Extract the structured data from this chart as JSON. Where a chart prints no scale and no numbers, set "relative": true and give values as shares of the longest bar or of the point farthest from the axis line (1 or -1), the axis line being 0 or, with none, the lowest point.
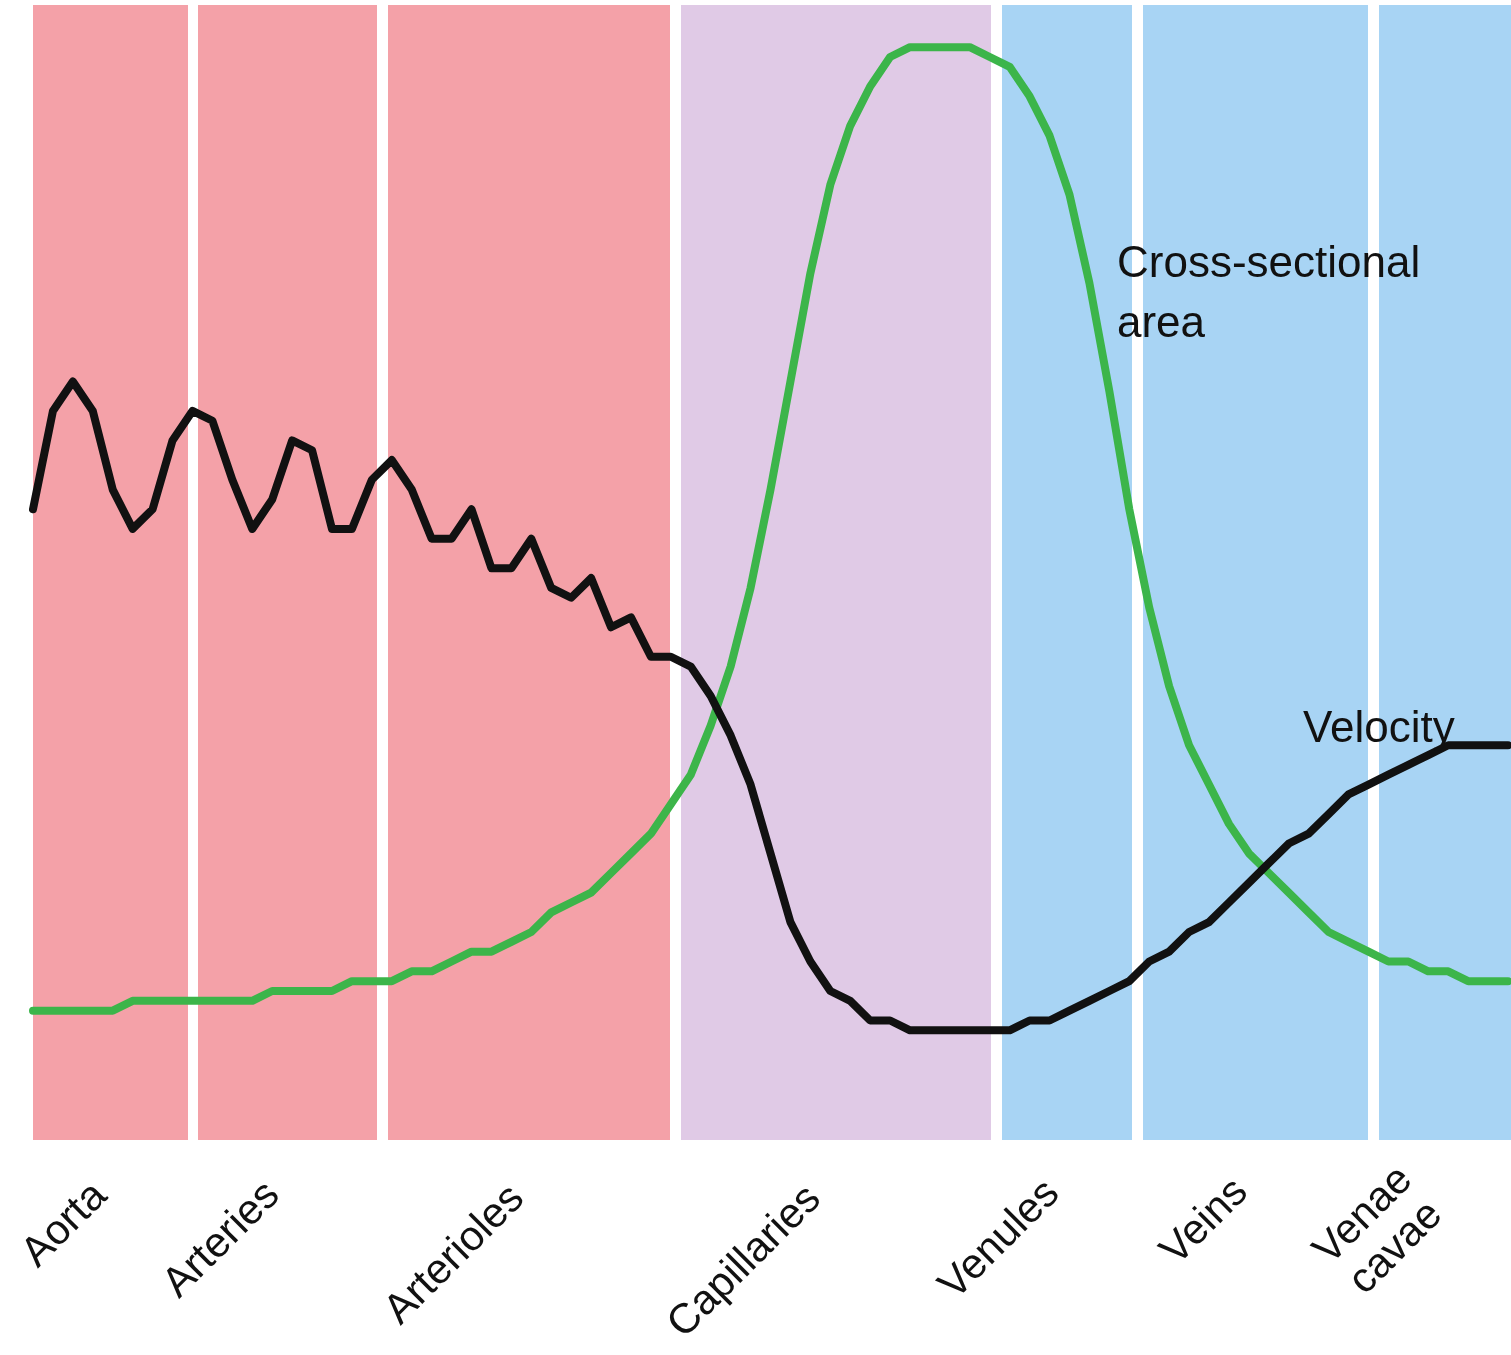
{
  "chart_data": {
    "type": "line",
    "relative": true,
    "grid": false,
    "legend": false,
    "marker": "none",
    "line_style": "solid",
    "categories": [
      null,
      null,
      null,
      null,
      null,
      null,
      null,
      null,
      null,
      null,
      null,
      null,
      null,
      null,
      null,
      null,
      null,
      null,
      null,
      null,
      null,
      null,
      null,
      null,
      null,
      null,
      null,
      null,
      null,
      null,
      null,
      null,
      null,
      null,
      null,
      null,
      null,
      null,
      null,
      null,
      null,
      null,
      null,
      null,
      null,
      null,
      null,
      null,
      null,
      null,
      null,
      null,
      null,
      null,
      null,
      null,
      null,
      null,
      null,
      null,
      null,
      null,
      null,
      null,
      null,
      null,
      null,
      null,
      null,
      null,
      null,
      null,
      null,
      null,
      null
    ],
    "annotations": [
      "Aorta",
      "Arteries",
      "Arterioles",
      "Capillaries",
      "Venules",
      "Veins",
      "Venae cavae"
    ],
    "series": [
      {
        "name": "Velocity",
        "color": "#111111",
        "values": [
          0.53,
          0.63,
          0.66,
          0.63,
          0.55,
          0.51,
          0.53,
          0.6,
          0.63,
          0.62,
          0.56,
          0.51,
          0.54,
          0.6,
          0.59,
          0.51,
          0.51,
          0.56,
          0.58,
          0.55,
          0.5,
          0.5,
          0.53,
          0.47,
          0.47,
          0.5,
          0.45,
          0.44,
          0.46,
          0.41,
          0.42,
          0.38,
          0.38,
          0.37,
          0.34,
          0.3,
          0.25,
          0.18,
          0.11,
          0.07,
          0.04,
          0.03,
          0.01,
          0.01,
          0.0,
          0.0,
          0.0,
          0.0,
          0.0,
          0.0,
          0.01,
          0.01,
          0.02,
          0.03,
          0.04,
          0.05,
          0.07,
          0.08,
          0.1,
          0.11,
          0.13,
          0.15,
          0.17,
          0.19,
          0.2,
          0.22,
          0.24,
          0.25,
          0.26,
          0.27,
          0.28,
          0.29,
          0.29,
          0.29,
          0.29
        ]
      },
      {
        "name": "Cross-sectional area",
        "color": "#3cb54a",
        "values": [
          0.02,
          0.02,
          0.02,
          0.02,
          0.02,
          0.03,
          0.03,
          0.03,
          0.03,
          0.03,
          0.03,
          0.03,
          0.04,
          0.04,
          0.04,
          0.04,
          0.05,
          0.05,
          0.05,
          0.06,
          0.06,
          0.07,
          0.08,
          0.08,
          0.09,
          0.1,
          0.12,
          0.13,
          0.14,
          0.16,
          0.18,
          0.2,
          0.23,
          0.26,
          0.31,
          0.37,
          0.45,
          0.55,
          0.66,
          0.77,
          0.86,
          0.92,
          0.96,
          0.99,
          1.0,
          1.0,
          1.0,
          1.0,
          0.99,
          0.98,
          0.95,
          0.91,
          0.85,
          0.76,
          0.65,
          0.53,
          0.43,
          0.35,
          0.29,
          0.25,
          0.21,
          0.18,
          0.16,
          0.14,
          0.12,
          0.1,
          0.09,
          0.08,
          0.07,
          0.07,
          0.06,
          0.06,
          0.05,
          0.05,
          0.05
        ]
      }
    ]
  }
}
